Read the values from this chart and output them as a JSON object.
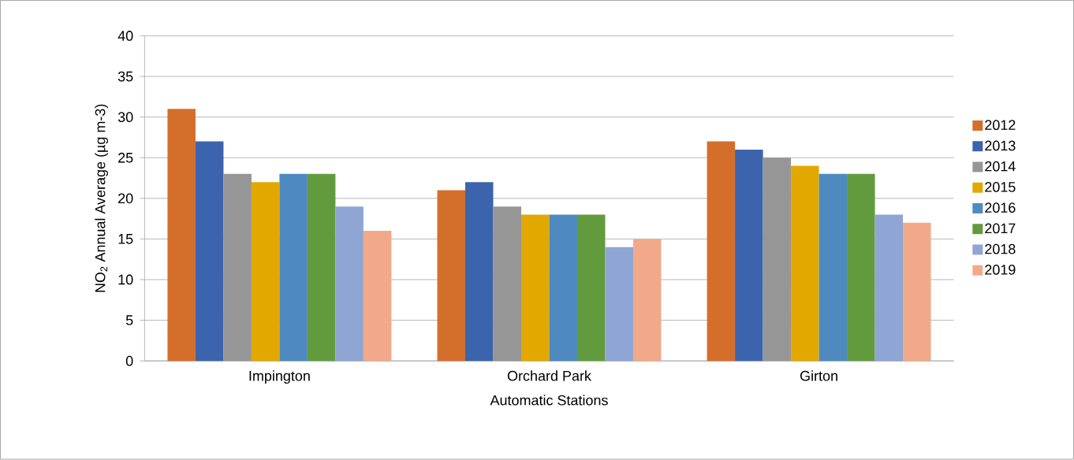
{
  "chart_data": {
    "type": "bar",
    "xlabel": "Automatic Stations",
    "ylabel": "NO$_{2}$ Annual Average (µg m-3)",
    "categories": [
      "Impington",
      "Orchard Park",
      "Girton"
    ],
    "series": [
      {
        "name": "2012",
        "color": "#d46e2b",
        "values": [
          31,
          21,
          27
        ]
      },
      {
        "name": "2013",
        "color": "#3b64ad",
        "values": [
          27,
          22,
          26
        ]
      },
      {
        "name": "2014",
        "color": "#969696",
        "values": [
          23,
          19,
          25
        ]
      },
      {
        "name": "2015",
        "color": "#e2a800",
        "values": [
          22,
          18,
          24
        ]
      },
      {
        "name": "2016",
        "color": "#4e8ac0",
        "values": [
          23,
          18,
          23
        ]
      },
      {
        "name": "2017",
        "color": "#629b3e",
        "values": [
          23,
          18,
          23
        ]
      },
      {
        "name": "2018",
        "color": "#8fa5d4",
        "values": [
          19,
          14,
          18
        ]
      },
      {
        "name": "2019",
        "color": "#f2a98a",
        "values": [
          16,
          15,
          17
        ]
      }
    ],
    "ylim": [
      0,
      40
    ],
    "yticks": [
      0,
      5,
      10,
      15,
      20,
      25,
      30,
      35,
      40
    ],
    "grid": "y",
    "legend": "right"
  }
}
